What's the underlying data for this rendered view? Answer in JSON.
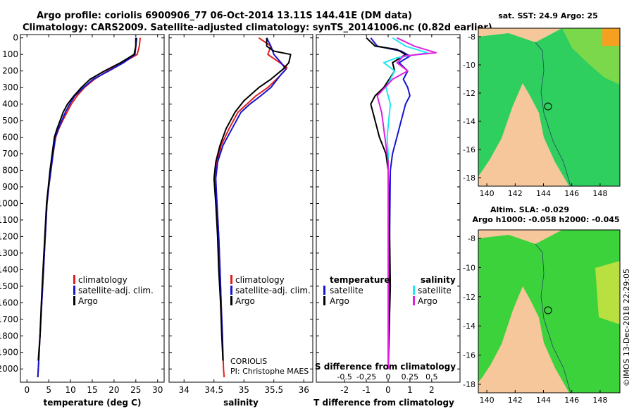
{
  "header": {
    "line1": "Argo profile: coriolis 6900906_77 06-Oct-2014 13.11S 144.41E (DM data)",
    "line2": "Climatology: CARS2009. Satellite-adjusted climatology: synTS_20141006.nc (0.82d earlier)"
  },
  "colors": {
    "clim": "#e02020",
    "sat": "#1515d0",
    "argo": "#000000",
    "cyan": "#20e8f0",
    "magenta": "#e020e0",
    "land": "#f5c79a",
    "sea_mid": "#22d070"
  },
  "chart_data": [
    {
      "type": "line",
      "id": "temperature",
      "xlabel": "temperature (deg C)",
      "xlim": [
        -1.5,
        31.5
      ],
      "ylim": [
        2080,
        -20
      ],
      "xticks": [
        0,
        5,
        10,
        15,
        20,
        25,
        30
      ],
      "yticks": [
        0,
        100,
        200,
        300,
        400,
        500,
        600,
        700,
        800,
        900,
        1000,
        1100,
        1200,
        1300,
        1400,
        1500,
        1600,
        1700,
        1800,
        1900,
        2000
      ],
      "legend": [
        "climatology",
        "satellite-adj. clim.",
        "Argo"
      ],
      "series": [
        {
          "name": "climatology",
          "color": "clim",
          "points": [
            [
              26.0,
              0
            ],
            [
              25.8,
              50
            ],
            [
              25.3,
              100
            ],
            [
              22.0,
              150
            ],
            [
              18.5,
              200
            ],
            [
              15.5,
              250
            ],
            [
              13.2,
              300
            ],
            [
              11.5,
              350
            ],
            [
              10.2,
              400
            ],
            [
              9.2,
              450
            ],
            [
              8.2,
              500
            ],
            [
              7.3,
              550
            ],
            [
              6.6,
              600
            ],
            [
              6.0,
              700
            ],
            [
              5.5,
              800
            ],
            [
              5.0,
              900
            ],
            [
              4.6,
              1000
            ],
            [
              4.2,
              1200
            ],
            [
              3.8,
              1400
            ],
            [
              3.4,
              1600
            ],
            [
              3.0,
              1800
            ],
            [
              2.7,
              1950
            ],
            [
              2.5,
              2050
            ]
          ]
        },
        {
          "name": "satellite-adj. clim.",
          "color": "sat",
          "points": [
            [
              25.2,
              0
            ],
            [
              25.0,
              50
            ],
            [
              24.8,
              100
            ],
            [
              22.2,
              150
            ],
            [
              18.8,
              200
            ],
            [
              15.2,
              250
            ],
            [
              13.0,
              300
            ],
            [
              11.0,
              350
            ],
            [
              9.8,
              400
            ],
            [
              8.8,
              450
            ],
            [
              8.0,
              500
            ],
            [
              7.2,
              550
            ],
            [
              6.5,
              600
            ],
            [
              6.0,
              700
            ],
            [
              5.5,
              800
            ],
            [
              5.0,
              900
            ],
            [
              4.6,
              1000
            ],
            [
              4.2,
              1200
            ],
            [
              3.8,
              1400
            ],
            [
              3.4,
              1600
            ],
            [
              3.0,
              1800
            ],
            [
              2.7,
              1950
            ],
            [
              2.5,
              2050
            ]
          ]
        },
        {
          "name": "Argo",
          "color": "argo",
          "points": [
            [
              25.0,
              0
            ],
            [
              25.0,
              50
            ],
            [
              24.6,
              100
            ],
            [
              21.5,
              150
            ],
            [
              17.8,
              200
            ],
            [
              14.5,
              250
            ],
            [
              12.5,
              300
            ],
            [
              10.8,
              350
            ],
            [
              9.3,
              400
            ],
            [
              8.3,
              450
            ],
            [
              7.6,
              500
            ],
            [
              6.9,
              550
            ],
            [
              6.3,
              600
            ],
            [
              5.8,
              700
            ],
            [
              5.3,
              800
            ],
            [
              4.9,
              900
            ],
            [
              4.5,
              1000
            ],
            [
              4.1,
              1200
            ],
            [
              3.7,
              1400
            ],
            [
              3.3,
              1600
            ],
            [
              3.0,
              1800
            ],
            [
              2.6,
              1950
            ]
          ]
        }
      ]
    },
    {
      "type": "line",
      "id": "salinity",
      "xlabel": "salinity",
      "xlim": [
        33.75,
        36.15
      ],
      "ylim": [
        2080,
        -20
      ],
      "xticks": [
        34,
        34.5,
        35,
        35.5,
        36
      ],
      "xticklabels": [
        "34",
        "34.5",
        "35",
        "35.5",
        "36"
      ],
      "legend": [
        "climatology",
        "satellite-adj. clim.",
        "Argo"
      ],
      "annotation": [
        "CORIOLIS",
        "PI: Christophe MAES"
      ],
      "series": [
        {
          "name": "climatology",
          "color": "clim",
          "points": [
            [
              35.25,
              0
            ],
            [
              35.45,
              50
            ],
            [
              35.4,
              100
            ],
            [
              35.6,
              150
            ],
            [
              35.72,
              180
            ],
            [
              35.6,
              230
            ],
            [
              35.4,
              300
            ],
            [
              35.2,
              350
            ],
            [
              35.05,
              400
            ],
            [
              34.9,
              450
            ],
            [
              34.75,
              550
            ],
            [
              34.62,
              650
            ],
            [
              34.55,
              750
            ],
            [
              34.52,
              850
            ],
            [
              34.55,
              1000
            ],
            [
              34.58,
              1200
            ],
            [
              34.6,
              1400
            ],
            [
              34.62,
              1600
            ],
            [
              34.64,
              1800
            ],
            [
              34.66,
              2000
            ],
            [
              34.67,
              2050
            ]
          ]
        },
        {
          "name": "satellite-adj. clim.",
          "color": "sat",
          "points": [
            [
              35.38,
              0
            ],
            [
              35.45,
              50
            ],
            [
              35.5,
              100
            ],
            [
              35.62,
              150
            ],
            [
              35.7,
              190
            ],
            [
              35.6,
              230
            ],
            [
              35.45,
              300
            ],
            [
              35.28,
              350
            ],
            [
              35.1,
              400
            ],
            [
              34.95,
              450
            ],
            [
              34.8,
              550
            ],
            [
              34.65,
              650
            ],
            [
              34.56,
              750
            ],
            [
              34.53,
              850
            ],
            [
              34.55,
              1000
            ],
            [
              34.58,
              1200
            ],
            [
              34.6,
              1400
            ],
            [
              34.62,
              1600
            ],
            [
              34.64,
              1800
            ],
            [
              34.65,
              1950
            ]
          ]
        },
        {
          "name": "Argo",
          "color": "argo",
          "points": [
            [
              35.38,
              0
            ],
            [
              35.38,
              50
            ],
            [
              35.5,
              80
            ],
            [
              35.78,
              100
            ],
            [
              35.75,
              150
            ],
            [
              35.65,
              190
            ],
            [
              35.45,
              250
            ],
            [
              35.25,
              300
            ],
            [
              35.0,
              380
            ],
            [
              34.85,
              450
            ],
            [
              34.7,
              550
            ],
            [
              34.6,
              650
            ],
            [
              34.53,
              750
            ],
            [
              34.5,
              850
            ],
            [
              34.53,
              1000
            ],
            [
              34.56,
              1200
            ],
            [
              34.58,
              1400
            ],
            [
              34.61,
              1600
            ],
            [
              34.63,
              1800
            ],
            [
              34.65,
              1950
            ]
          ]
        }
      ]
    },
    {
      "type": "line",
      "id": "differences",
      "xlabel": "T difference from climatology",
      "xlim": [
        -3.3,
        3.3
      ],
      "ylim": [
        2080,
        -20
      ],
      "xticks": [
        -2,
        -1,
        0,
        1,
        2
      ],
      "xticklabels": [
        "-2",
        "-1",
        "0",
        "1",
        "2"
      ],
      "top_axis_label": "S difference from climatology",
      "top_ticks": [
        -0.5,
        -0.25,
        0,
        0.25,
        0.5
      ],
      "top_ticklabels": [
        "-0.5",
        "-0.25",
        "0",
        "0.25",
        "0.5"
      ],
      "top_scale": 4,
      "legend_left_title": "temperature",
      "legend_left": [
        "satellite",
        "Argo"
      ],
      "legend_right_title": "salinity",
      "legend_right": [
        "satellite",
        "Argo"
      ],
      "series": [
        {
          "name": "T satellite",
          "color": "sat",
          "points": [
            [
              -0.8,
              0
            ],
            [
              -0.5,
              50
            ],
            [
              0.6,
              80
            ],
            [
              1.0,
              110
            ],
            [
              0.5,
              150
            ],
            [
              0.9,
              200
            ],
            [
              0.7,
              250
            ],
            [
              0.9,
              300
            ],
            [
              1.0,
              350
            ],
            [
              0.8,
              400
            ],
            [
              0.6,
              500
            ],
            [
              0.4,
              600
            ],
            [
              0.2,
              700
            ],
            [
              0.1,
              800
            ],
            [
              0,
              2000
            ]
          ]
        },
        {
          "name": "T Argo",
          "color": "argo",
          "points": [
            [
              -1.0,
              0
            ],
            [
              -0.6,
              50
            ],
            [
              0.4,
              70
            ],
            [
              0.8,
              100
            ],
            [
              0.2,
              150
            ],
            [
              0.3,
              200
            ],
            [
              -0.2,
              300
            ],
            [
              -0.6,
              350
            ],
            [
              -0.8,
              400
            ],
            [
              -0.6,
              500
            ],
            [
              -0.4,
              600
            ],
            [
              -0.1,
              700
            ],
            [
              0,
              800
            ],
            [
              0.05,
              1000
            ],
            [
              0.1,
              1500
            ],
            [
              0,
              2000
            ]
          ]
        },
        {
          "name": "S satellite",
          "color": "cyan",
          "points": [
            [
              0.2,
              0
            ],
            [
              0.8,
              50
            ],
            [
              1.8,
              90
            ],
            [
              0.4,
              120
            ],
            [
              -0.2,
              150
            ],
            [
              0.3,
              200
            ],
            [
              -0.1,
              300
            ],
            [
              0.1,
              400
            ],
            [
              -0.05,
              600
            ],
            [
              0,
              700
            ],
            [
              0,
              2000
            ]
          ]
        },
        {
          "name": "S Argo",
          "color": "magenta",
          "points": [
            [
              0.4,
              0
            ],
            [
              1.2,
              50
            ],
            [
              2.2,
              90
            ],
            [
              0.7,
              110
            ],
            [
              0.4,
              150
            ],
            [
              0.9,
              200
            ],
            [
              0.2,
              250
            ],
            [
              -0.5,
              350
            ],
            [
              -0.3,
              450
            ],
            [
              -0.2,
              550
            ],
            [
              -0.1,
              650
            ],
            [
              0,
              750
            ],
            [
              0,
              2000
            ]
          ]
        }
      ]
    }
  ],
  "map_top": {
    "title": "sat. SST: 24.9 Argo: 25",
    "xticks": [
      "140",
      "142",
      "144",
      "146",
      "148"
    ],
    "yticks": [
      "-8",
      "-10",
      "-12",
      "-14",
      "-16",
      "-18"
    ]
  },
  "map_bottom": {
    "title1": "Altim. SLA: -0.029",
    "title2": "Argo h1000: -0.058 h2000: -0.045",
    "xticks": [
      "140",
      "142",
      "144",
      "146",
      "148"
    ],
    "yticks": [
      "-8",
      "-10",
      "-12",
      "-14",
      "-16",
      "-18"
    ]
  },
  "footer": {
    "credit": "©IMOS 13-Dec-2018 22:29:05"
  }
}
